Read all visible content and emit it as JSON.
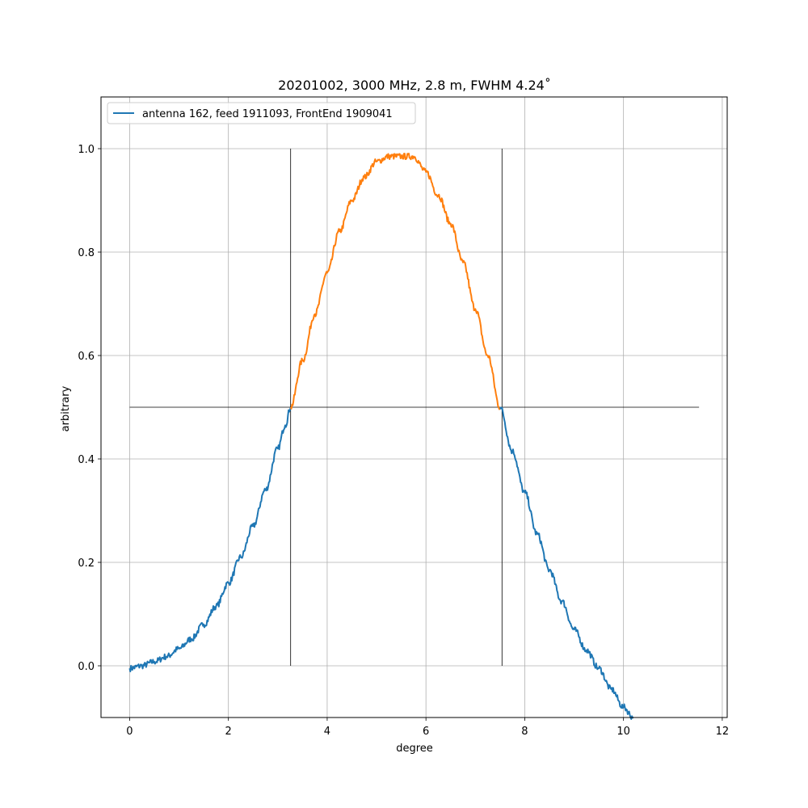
{
  "chart_data": {
    "type": "line",
    "title": "20201002, 3000 MHz, 2.8 m, FWHM 4.24˚",
    "xlabel": "degree",
    "ylabel": "arbitrary",
    "xlim": [
      -0.58,
      12.1
    ],
    "ylim": [
      -0.1,
      1.1
    ],
    "xticks": [
      0,
      2,
      4,
      6,
      8,
      10,
      12
    ],
    "xtick_labels": [
      "0",
      "2",
      "4",
      "6",
      "8",
      "10",
      "12"
    ],
    "yticks": [
      0.0,
      0.2,
      0.4,
      0.6,
      0.8,
      1.0
    ],
    "ytick_labels": [
      "0.0",
      "0.2",
      "0.4",
      "0.6",
      "0.8",
      "1.0"
    ],
    "grid": true,
    "legend_position": "top-left",
    "series": [
      {
        "name": "antenna 162, feed 1911093, FrontEnd 1909041",
        "color": "#1f77b4",
        "x": [
          0.0,
          0.25,
          0.5,
          0.75,
          1.0,
          1.25,
          1.5,
          1.75,
          2.0,
          2.25,
          2.5,
          2.75,
          3.0,
          3.15,
          3.26
        ],
        "y": [
          -0.005,
          0.0,
          0.008,
          0.018,
          0.033,
          0.052,
          0.08,
          0.115,
          0.16,
          0.21,
          0.27,
          0.34,
          0.42,
          0.465,
          0.5
        ]
      },
      {
        "name": "",
        "color": "#ff7f0e",
        "x": [
          3.26,
          3.5,
          3.75,
          4.0,
          4.25,
          4.5,
          4.75,
          5.0,
          5.25,
          5.5,
          5.75,
          6.0,
          6.25,
          6.5,
          6.75,
          7.0,
          7.25,
          7.5
        ],
        "y": [
          0.5,
          0.59,
          0.68,
          0.76,
          0.84,
          0.9,
          0.945,
          0.975,
          0.985,
          0.985,
          0.985,
          0.955,
          0.91,
          0.855,
          0.78,
          0.69,
          0.6,
          0.5
        ]
      },
      {
        "name": "",
        "color": "#1f77b4",
        "x": [
          7.5,
          7.75,
          8.0,
          8.25,
          8.5,
          8.75,
          9.0,
          9.25,
          9.5,
          9.75,
          10.0,
          10.2
        ],
        "y": [
          0.5,
          0.415,
          0.335,
          0.255,
          0.185,
          0.125,
          0.07,
          0.03,
          -0.005,
          -0.045,
          -0.08,
          -0.1
        ]
      }
    ],
    "reference_lines": [
      {
        "orientation": "horizontal",
        "y": 0.5,
        "x_from": 0.0,
        "x_to": 11.53
      },
      {
        "orientation": "vertical",
        "x": 3.26,
        "y_from": 0.0,
        "y_to": 1.0
      },
      {
        "orientation": "vertical",
        "x": 7.54,
        "y_from": 0.0,
        "y_to": 1.0
      }
    ]
  }
}
